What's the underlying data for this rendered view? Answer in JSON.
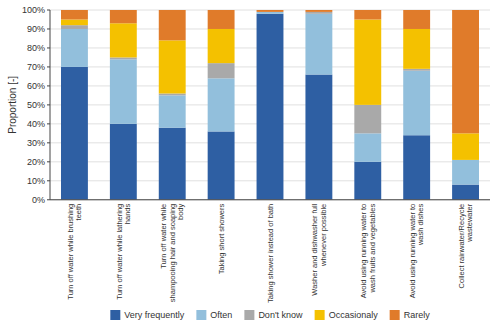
{
  "chart_data": {
    "type": "bar",
    "stacked": true,
    "categories": [
      "Turn off water while brushing\nteeth",
      "Turn off water while lathering\nhands",
      "Turn off water while\nshampooing hair and soaping\nbody",
      "Taking short showers",
      "Taking shower instead of bath",
      "Washer and dishwasher full\nwhenever possible",
      "Avoid using running water to\nwash fruits and vegetables",
      "Avoid using running water to\nwash dishes",
      "Collect rainwater/Recycle\nwastewater"
    ],
    "series": [
      {
        "name": "Very frequently",
        "color": "#2E5FA3",
        "values": [
          70,
          40,
          38,
          36,
          98,
          66,
          20,
          34,
          8
        ]
      },
      {
        "name": "Often",
        "color": "#92BFDC",
        "values": [
          20,
          34,
          17,
          28,
          1,
          32,
          15,
          34,
          13
        ]
      },
      {
        "name": "Don't know",
        "color": "#A9A9A9",
        "values": [
          2,
          1,
          1,
          8,
          0,
          1,
          15,
          1,
          0
        ]
      },
      {
        "name": "Occasionaly",
        "color": "#F4C100",
        "values": [
          3,
          18,
          28,
          18,
          0,
          0,
          45,
          21,
          14
        ]
      },
      {
        "name": "Rarely",
        "color": "#E07B2A",
        "values": [
          5,
          7,
          16,
          10,
          1,
          1,
          5,
          10,
          65
        ]
      }
    ],
    "y_label": "Proportion [-]",
    "ylim": [
      0,
      100
    ],
    "yticks": [
      {
        "value": 0,
        "label": "0%"
      },
      {
        "value": 10,
        "label": "10%"
      },
      {
        "value": 20,
        "label": "20%"
      },
      {
        "value": 30,
        "label": "30%"
      },
      {
        "value": 40,
        "label": "40%"
      },
      {
        "value": 50,
        "label": "50%"
      },
      {
        "value": 60,
        "label": "60%"
      },
      {
        "value": 70,
        "label": "70%"
      },
      {
        "value": 80,
        "label": "80%"
      },
      {
        "value": 90,
        "label": "90%"
      },
      {
        "value": 100,
        "label": "100%"
      }
    ],
    "grid": true,
    "legend": "bottom"
  }
}
